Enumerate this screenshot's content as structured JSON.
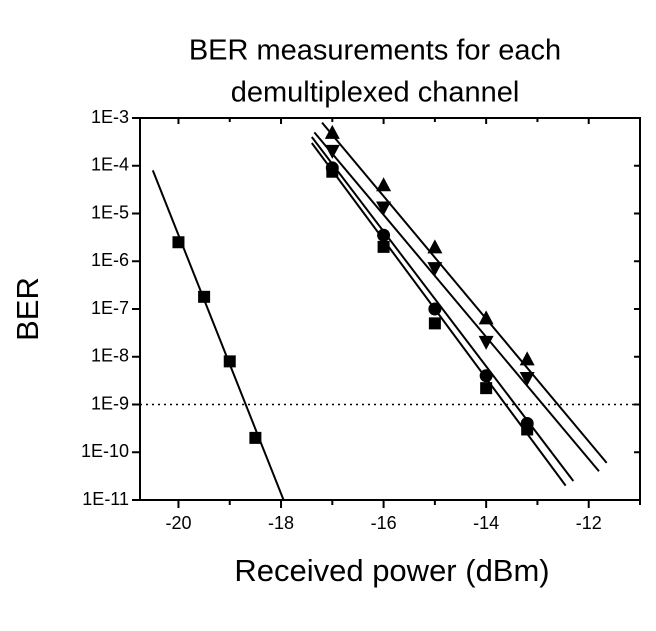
{
  "chart_data": {
    "type": "scatter",
    "title": [
      "BER measurements for each",
      "demultiplexed channel"
    ],
    "x_label": "Received power (dBm)",
    "y_label": "BER",
    "xlim": [
      -20.75,
      -11
    ],
    "xticks": [
      -20,
      -18,
      -16,
      -14,
      -12
    ],
    "ylim": [
      1e-11,
      0.001
    ],
    "yticks": [
      {
        "value": 0.001,
        "label": "1E-3"
      },
      {
        "value": 0.0001,
        "label": "1E-4"
      },
      {
        "value": 1e-05,
        "label": "1E-5"
      },
      {
        "value": 1e-06,
        "label": "1E-6"
      },
      {
        "value": 1e-07,
        "label": "1E-7"
      },
      {
        "value": 1e-08,
        "label": "1E-8"
      },
      {
        "value": 1e-09,
        "label": "1E-9"
      },
      {
        "value": 1e-10,
        "label": "1E-10"
      },
      {
        "value": 1e-11,
        "label": "1E-11"
      }
    ],
    "y_log": true,
    "threshold": 1e-09,
    "color": "#000000",
    "series": [
      {
        "marker": "square",
        "x": [
          -20,
          -19.5,
          -19,
          -18.5
        ],
        "values": [
          2.5e-06,
          1.8e-07,
          8e-09,
          2e-10
        ]
      },
      {
        "marker": "square",
        "x": [
          -17,
          -16,
          -15,
          -14,
          -13.2
        ],
        "values": [
          7.5e-05,
          2e-06,
          5e-08,
          2.2e-09,
          3e-10
        ]
      },
      {
        "marker": "circle",
        "x": [
          -17,
          -16,
          -15,
          -14,
          -13.2
        ],
        "values": [
          9e-05,
          3.5e-06,
          1e-07,
          4e-09,
          4e-10
        ]
      },
      {
        "marker": "triangle-down",
        "x": [
          -17,
          -16,
          -15,
          -14,
          -13.2
        ],
        "values": [
          0.0002,
          1.3e-05,
          7e-07,
          2e-08,
          3.5e-09
        ]
      },
      {
        "marker": "triangle-up",
        "x": [
          -17,
          -16,
          -15,
          -14,
          -13.2
        ],
        "values": [
          0.0005,
          4e-05,
          2e-06,
          6.5e-08,
          9e-09
        ]
      }
    ],
    "fit_lines": [
      {
        "x": [
          -20.5,
          -17.95
        ],
        "values": [
          8e-05,
          1e-11
        ]
      },
      {
        "x": [
          -17.4,
          -12.45
        ],
        "values": [
          0.0003,
          2e-11
        ]
      },
      {
        "x": [
          -17.4,
          -12.3
        ],
        "values": [
          0.0004,
          2.5e-11
        ]
      },
      {
        "x": [
          -17.35,
          -11.8
        ],
        "values": [
          0.0005,
          4e-11
        ]
      },
      {
        "x": [
          -17.2,
          -11.65
        ],
        "values": [
          0.0008,
          6e-11
        ]
      }
    ]
  }
}
